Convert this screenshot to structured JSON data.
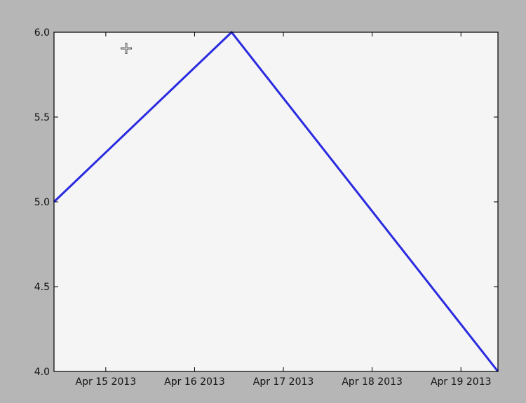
{
  "chart_data": {
    "type": "line",
    "title": "",
    "xlabel": "",
    "ylabel": "",
    "x_tick_labels": [
      "Apr 15 2013",
      "Apr 16 2013",
      "Apr 17 2013",
      "Apr 18 2013",
      "Apr 19 2013"
    ],
    "x_tick_dates": [
      "2013-04-15T00:00",
      "2013-04-16T00:00",
      "2013-04-17T00:00",
      "2013-04-18T00:00",
      "2013-04-19T00:00"
    ],
    "y_tick_labels": [
      "4.0",
      "4.5",
      "5.0",
      "5.5",
      "6.0"
    ],
    "y_ticks": [
      4.0,
      4.5,
      5.0,
      5.5,
      6.0
    ],
    "xlim": [
      "2013-04-14T10:00",
      "2013-04-19T10:00"
    ],
    "ylim": [
      4.0,
      6.0
    ],
    "grid": false,
    "series": [
      {
        "color": "#2a2ae0",
        "points": [
          {
            "x": "2013-04-14T10:00",
            "y": 5.0
          },
          {
            "x": "2013-04-16T10:00",
            "y": 6.0
          },
          {
            "x": "2013-04-19T10:00",
            "y": 4.0
          }
        ]
      }
    ]
  },
  "colors": {
    "figure_background": "#b6b6b6",
    "plot_background": "#f5f5f5",
    "axes_edge": "#000000",
    "line": "#2a2ae0"
  },
  "cursor": {
    "icon": "move-cursor-icon"
  }
}
